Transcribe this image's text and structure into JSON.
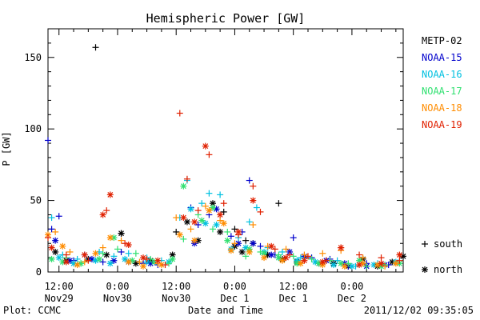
{
  "chart_data": {
    "type": "scatter",
    "title": "Hemispheric Power [GW]",
    "ylabel": "P [GW]",
    "xlabel": "Date and Time",
    "ylim": [
      0,
      170
    ],
    "yticks": [
      0,
      50,
      100,
      150
    ],
    "xlim_hours": [
      0,
      97
    ],
    "xticks": [
      {
        "h": 3,
        "time": "12:00",
        "date": "Nov29"
      },
      {
        "h": 19,
        "time": "0:00",
        "date": "Nov30"
      },
      {
        "h": 35,
        "time": "12:00",
        "date": "Nov30"
      },
      {
        "h": 51,
        "time": "0:00",
        "date": "Dec 1"
      },
      {
        "h": 67,
        "time": "12:00",
        "date": "Dec 1"
      },
      {
        "h": 83,
        "time": "0:00",
        "date": "Dec 2"
      }
    ],
    "legend_placement": "right",
    "marker_key": [
      {
        "marker": "+",
        "label": "south"
      },
      {
        "marker": "*",
        "label": "north"
      }
    ],
    "series": [
      {
        "name": "METP-02",
        "color": "#000000",
        "south": [
          [
            13,
            157
          ],
          [
            20,
            27
          ],
          [
            35,
            28
          ],
          [
            48,
            42
          ],
          [
            51,
            30
          ],
          [
            54,
            22
          ],
          [
            63,
            48
          ],
          [
            70,
            10
          ],
          [
            76,
            8
          ]
        ],
        "north": [
          [
            2,
            14
          ],
          [
            5,
            8
          ],
          [
            11,
            9
          ],
          [
            16,
            12
          ],
          [
            20,
            27
          ],
          [
            24,
            6
          ],
          [
            28,
            8
          ],
          [
            34,
            12
          ],
          [
            38,
            35
          ],
          [
            41,
            22
          ],
          [
            45,
            48
          ],
          [
            47,
            28
          ],
          [
            51,
            18
          ],
          [
            53,
            14
          ],
          [
            56,
            20
          ],
          [
            60,
            12
          ],
          [
            64,
            9
          ],
          [
            68,
            7
          ],
          [
            74,
            6
          ],
          [
            78,
            6
          ],
          [
            82,
            4
          ],
          [
            86,
            9
          ],
          [
            90,
            4
          ],
          [
            94,
            7
          ],
          [
            97,
            11
          ]
        ]
      },
      {
        "name": "NOAA-15",
        "color": "#0000cc",
        "south": [
          [
            0,
            92
          ],
          [
            1,
            30
          ],
          [
            3,
            39
          ],
          [
            7,
            8
          ],
          [
            10,
            12
          ],
          [
            15,
            7
          ],
          [
            20,
            14
          ],
          [
            26,
            6
          ],
          [
            30,
            5
          ],
          [
            39,
            45
          ],
          [
            41,
            33
          ],
          [
            44,
            40
          ],
          [
            50,
            25
          ],
          [
            53,
            28
          ],
          [
            55,
            64
          ],
          [
            58,
            18
          ],
          [
            62,
            12
          ],
          [
            67,
            24
          ],
          [
            72,
            10
          ],
          [
            77,
            9
          ],
          [
            82,
            4
          ],
          [
            87,
            6
          ],
          [
            93,
            5
          ]
        ],
        "north": [
          [
            2,
            22
          ],
          [
            6,
            8
          ],
          [
            12,
            9
          ],
          [
            18,
            8
          ],
          [
            22,
            7
          ],
          [
            28,
            6
          ],
          [
            40,
            20
          ],
          [
            46,
            44
          ],
          [
            52,
            20
          ],
          [
            56,
            20
          ],
          [
            61,
            12
          ],
          [
            66,
            14
          ],
          [
            70,
            11
          ],
          [
            76,
            8
          ],
          [
            81,
            6
          ],
          [
            87,
            4
          ],
          [
            92,
            5
          ]
        ]
      },
      {
        "name": "NOAA-16",
        "color": "#00c0e0",
        "south": [
          [
            1,
            38
          ],
          [
            4,
            12
          ],
          [
            8,
            9
          ],
          [
            14,
            14
          ],
          [
            18,
            11
          ],
          [
            22,
            13
          ],
          [
            27,
            10
          ],
          [
            31,
            8
          ],
          [
            36,
            38
          ],
          [
            38,
            64
          ],
          [
            42,
            48
          ],
          [
            44,
            55
          ],
          [
            47,
            54
          ],
          [
            52,
            24
          ],
          [
            55,
            35
          ],
          [
            57,
            45
          ],
          [
            60,
            17
          ],
          [
            64,
            14
          ],
          [
            69,
            10
          ],
          [
            73,
            7
          ],
          [
            79,
            8
          ],
          [
            84,
            4
          ],
          [
            90,
            6
          ]
        ],
        "north": [
          [
            3,
            10
          ],
          [
            7,
            6
          ],
          [
            13,
            8
          ],
          [
            17,
            6
          ],
          [
            21,
            9
          ],
          [
            27,
            7
          ],
          [
            33,
            7
          ],
          [
            39,
            44
          ],
          [
            43,
            34
          ],
          [
            46,
            33
          ],
          [
            50,
            16
          ],
          [
            54,
            17
          ],
          [
            59,
            14
          ],
          [
            63,
            10
          ],
          [
            68,
            8
          ],
          [
            73,
            7
          ],
          [
            78,
            5
          ],
          [
            83,
            4
          ],
          [
            89,
            5
          ],
          [
            95,
            7
          ]
        ]
      },
      {
        "name": "NOAA-17",
        "color": "#30e070",
        "south": [
          [
            5,
            10
          ],
          [
            9,
            6
          ],
          [
            15,
            13
          ],
          [
            19,
            16
          ],
          [
            24,
            13
          ],
          [
            28,
            9
          ],
          [
            33,
            6
          ],
          [
            37,
            23
          ],
          [
            41,
            40
          ],
          [
            45,
            30
          ],
          [
            49,
            28
          ],
          [
            54,
            11
          ],
          [
            58,
            14
          ],
          [
            63,
            12
          ],
          [
            67,
            11
          ],
          [
            72,
            9
          ],
          [
            77,
            8
          ],
          [
            82,
            6
          ],
          [
            87,
            4
          ],
          [
            92,
            5
          ]
        ],
        "north": [
          [
            1,
            9
          ],
          [
            4,
            7
          ],
          [
            9,
            6
          ],
          [
            14,
            9
          ],
          [
            18,
            24
          ],
          [
            23,
            8
          ],
          [
            29,
            7
          ],
          [
            34,
            9
          ],
          [
            37,
            60
          ],
          [
            42,
            36
          ],
          [
            45,
            45
          ],
          [
            49,
            22
          ],
          [
            55,
            16
          ],
          [
            59,
            13
          ],
          [
            63,
            10
          ],
          [
            68,
            6
          ],
          [
            74,
            6
          ],
          [
            80,
            6
          ],
          [
            85,
            8
          ],
          [
            91,
            4
          ],
          [
            96,
            6
          ]
        ]
      },
      {
        "name": "NOAA-18",
        "color": "#ff8c00",
        "south": [
          [
            2,
            28
          ],
          [
            6,
            14
          ],
          [
            10,
            7
          ],
          [
            15,
            17
          ],
          [
            20,
            22
          ],
          [
            25,
            7
          ],
          [
            30,
            6
          ],
          [
            35,
            38
          ],
          [
            39,
            30
          ],
          [
            43,
            46
          ],
          [
            47,
            36
          ],
          [
            51,
            20
          ],
          [
            56,
            33
          ],
          [
            60,
            18
          ],
          [
            65,
            16
          ],
          [
            70,
            12
          ],
          [
            75,
            13
          ],
          [
            80,
            15
          ],
          [
            86,
            10
          ],
          [
            92,
            4
          ]
        ],
        "north": [
          [
            0,
            26
          ],
          [
            4,
            18
          ],
          [
            8,
            5
          ],
          [
            13,
            13
          ],
          [
            17,
            24
          ],
          [
            22,
            7
          ],
          [
            26,
            4
          ],
          [
            31,
            5
          ],
          [
            36,
            26
          ],
          [
            40,
            22
          ],
          [
            44,
            43
          ],
          [
            48,
            34
          ],
          [
            50,
            15
          ],
          [
            55,
            14
          ],
          [
            59,
            10
          ],
          [
            64,
            8
          ],
          [
            69,
            6
          ],
          [
            75,
            5
          ],
          [
            81,
            4
          ],
          [
            86,
            6
          ],
          [
            90,
            5
          ],
          [
            95,
            6
          ]
        ]
      },
      {
        "name": "NOAA-19",
        "color": "#e02000",
        "south": [
          [
            0,
            24
          ],
          [
            5,
            12
          ],
          [
            11,
            8
          ],
          [
            16,
            43
          ],
          [
            21,
            20
          ],
          [
            27,
            9
          ],
          [
            32,
            5
          ],
          [
            36,
            111
          ],
          [
            38,
            65
          ],
          [
            41,
            43
          ],
          [
            44,
            82
          ],
          [
            48,
            48
          ],
          [
            52,
            26
          ],
          [
            56,
            60
          ],
          [
            58,
            42
          ],
          [
            62,
            16
          ],
          [
            66,
            12
          ],
          [
            71,
            11
          ],
          [
            76,
            8
          ],
          [
            80,
            17
          ],
          [
            85,
            12
          ],
          [
            91,
            10
          ],
          [
            96,
            8
          ]
        ],
        "north": [
          [
            1,
            17
          ],
          [
            5,
            7
          ],
          [
            10,
            12
          ],
          [
            15,
            40
          ],
          [
            17,
            54
          ],
          [
            22,
            19
          ],
          [
            26,
            10
          ],
          [
            30,
            8
          ],
          [
            37,
            38
          ],
          [
            40,
            35
          ],
          [
            43,
            88
          ],
          [
            47,
            40
          ],
          [
            52,
            28
          ],
          [
            56,
            50
          ],
          [
            61,
            18
          ],
          [
            65,
            10
          ],
          [
            70,
            8
          ],
          [
            75,
            7
          ],
          [
            80,
            17
          ],
          [
            85,
            5
          ],
          [
            91,
            6
          ],
          [
            96,
            12
          ]
        ]
      }
    ]
  },
  "footer": {
    "plot_credit": "Plot: CCMC",
    "timestamp": "2011/12/02 09:35:05"
  }
}
